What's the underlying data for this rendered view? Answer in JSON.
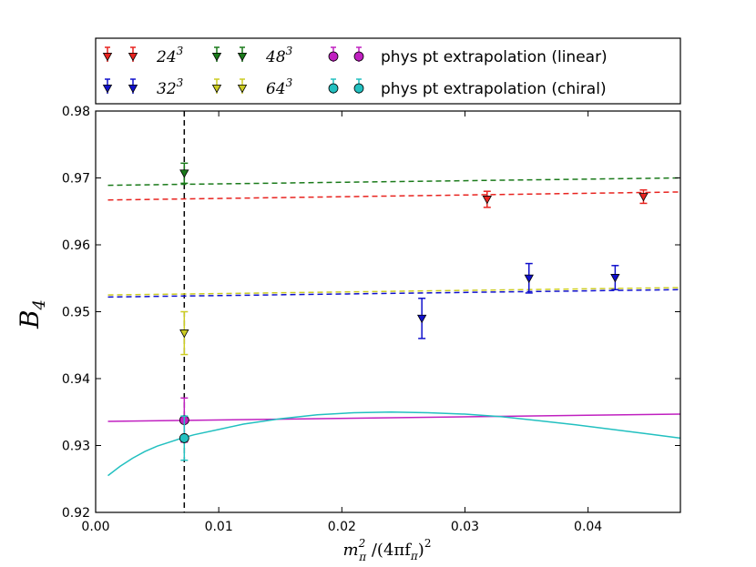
{
  "chart_data": {
    "type": "scatter",
    "xlabel": "m_π² / (4πf_π)²",
    "ylabel": "B_4",
    "xlim": [
      0.0,
      0.0475
    ],
    "ylim": [
      0.92,
      0.98
    ],
    "xticks": [
      0.0,
      0.01,
      0.02,
      0.03,
      0.04
    ],
    "yticks": [
      0.92,
      0.93,
      0.94,
      0.95,
      0.96,
      0.97,
      0.98
    ],
    "xtick_labels": [
      "0.00",
      "0.01",
      "0.02",
      "0.03",
      "0.04"
    ],
    "ytick_labels": [
      "0.92",
      "0.93",
      "0.94",
      "0.95",
      "0.96",
      "0.97",
      "0.98"
    ],
    "physical_point_x": 0.0072,
    "series": [
      {
        "name": "24^3",
        "color": "#e8231f",
        "marker": "triangle-down",
        "points": [
          {
            "x": 0.0318,
            "y": 0.9668,
            "err": 0.0012
          },
          {
            "x": 0.0445,
            "y": 0.9672,
            "err": 0.001
          }
        ],
        "fit": {
          "style": "dashed",
          "x0": 0.001,
          "y0": 0.9667,
          "x1": 0.0475,
          "y1": 0.9679
        }
      },
      {
        "name": "32^3",
        "color": "#1010cc",
        "marker": "triangle-down",
        "points": [
          {
            "x": 0.0265,
            "y": 0.949,
            "err": 0.003
          },
          {
            "x": 0.0352,
            "y": 0.955,
            "err": 0.0022
          },
          {
            "x": 0.0422,
            "y": 0.9551,
            "err": 0.0018
          }
        ],
        "fit": {
          "style": "dashed",
          "x0": 0.001,
          "y0": 0.9522,
          "x1": 0.0475,
          "y1": 0.9533
        }
      },
      {
        "name": "48^3",
        "color": "#1a7a1a",
        "marker": "triangle-down",
        "points": [
          {
            "x": 0.0072,
            "y": 0.9707,
            "err": 0.0015
          }
        ],
        "fit": {
          "style": "dashed",
          "x0": 0.001,
          "y0": 0.9689,
          "x1": 0.0475,
          "y1": 0.97
        }
      },
      {
        "name": "64^3",
        "color": "#cccc22",
        "marker": "triangle-down",
        "points": [
          {
            "x": 0.0072,
            "y": 0.9468,
            "err": 0.0032
          }
        ],
        "fit": {
          "style": "dashed",
          "x0": 0.001,
          "y0": 0.9525,
          "x1": 0.0475,
          "y1": 0.9536
        }
      },
      {
        "name": "phys pt extrapolation (linear)",
        "color": "#c020c0",
        "marker": "circle",
        "points": [
          {
            "x": 0.0072,
            "y": 0.9338,
            "err": 0.0033
          }
        ],
        "fit": {
          "style": "solid",
          "type": "linear",
          "x0": 0.001,
          "y0": 0.9336,
          "x1": 0.0475,
          "y1": 0.9347
        }
      },
      {
        "name": "phys pt extrapolation (chiral)",
        "color": "#22c0c0",
        "marker": "circle",
        "points": [
          {
            "x": 0.0072,
            "y": 0.9311,
            "err": 0.0033
          }
        ],
        "fit": {
          "style": "solid",
          "type": "curve",
          "x": [
            0.001,
            0.002,
            0.003,
            0.004,
            0.005,
            0.006,
            0.007,
            0.008,
            0.01,
            0.012,
            0.015,
            0.018,
            0.021,
            0.024,
            0.027,
            0.03,
            0.033,
            0.036,
            0.039,
            0.042,
            0.045,
            0.0475
          ],
          "y": [
            0.9255,
            0.9269,
            0.9281,
            0.9291,
            0.9299,
            0.9305,
            0.9311,
            0.9316,
            0.9324,
            0.9332,
            0.934,
            0.9346,
            0.9349,
            0.935,
            0.9349,
            0.9347,
            0.9343,
            0.9337,
            0.9331,
            0.9324,
            0.9317,
            0.9311
          ]
        }
      }
    ],
    "legend": {
      "placement": "top",
      "entries": [
        {
          "label": "24",
          "exp": "3",
          "series": 0
        },
        {
          "label": "32",
          "exp": "3",
          "series": 1
        },
        {
          "label": "48",
          "exp": "3",
          "series": 2
        },
        {
          "label": "64",
          "exp": "3",
          "series": 3
        },
        {
          "label": "phys pt extrapolation (linear)",
          "series": 4
        },
        {
          "label": "phys pt extrapolation (chiral)",
          "series": 5
        }
      ]
    }
  }
}
